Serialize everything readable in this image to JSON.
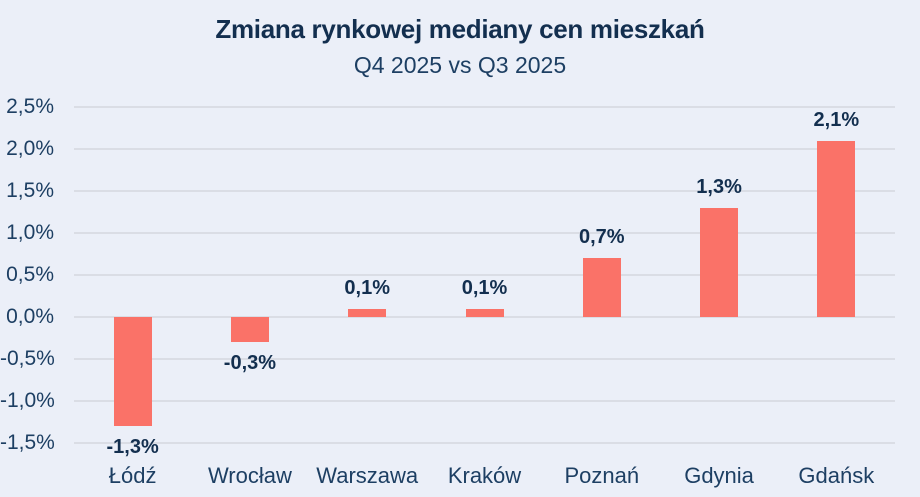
{
  "header": {
    "title": "Zmiana rynkowej mediany cen mieszkań",
    "subtitle": "Q4 2025 vs Q3 2025"
  },
  "chart_data": {
    "type": "bar",
    "title": "Zmiana rynkowej mediany cen mieszkań",
    "subtitle": "Q4 2025 vs Q3 2025",
    "categories": [
      "Łódź",
      "Wrocław",
      "Warszawa",
      "Kraków",
      "Poznań",
      "Gdynia",
      "Gdańsk"
    ],
    "values": [
      -1.3,
      -0.3,
      0.1,
      0.1,
      0.7,
      1.3,
      2.1
    ],
    "value_labels": [
      "-1,3%",
      "-0,3%",
      "0,1%",
      "0,1%",
      "0,7%",
      "1,3%",
      "2,1%"
    ],
    "unit": "%",
    "xlabel": "",
    "ylabel": "",
    "ylim": [
      -1.5,
      2.5
    ],
    "y_ticks": {
      "values": [
        2.5,
        2.0,
        1.5,
        1.0,
        0.5,
        0.0,
        -0.5,
        -1.0,
        -1.5
      ],
      "labels": [
        "2,5%",
        "2,0%",
        "1,5%",
        "1,0%",
        "0,5%",
        "0,0%",
        "-0,5%",
        "-1,0%",
        "-1,5%"
      ]
    },
    "grid": "horizontal",
    "legend": "none",
    "colors": {
      "bar": "#fa7268",
      "background": "#ebeff8",
      "gridline": "#dadde5",
      "title_text": "#132f4f",
      "axis_text": "#1d3f63"
    }
  }
}
